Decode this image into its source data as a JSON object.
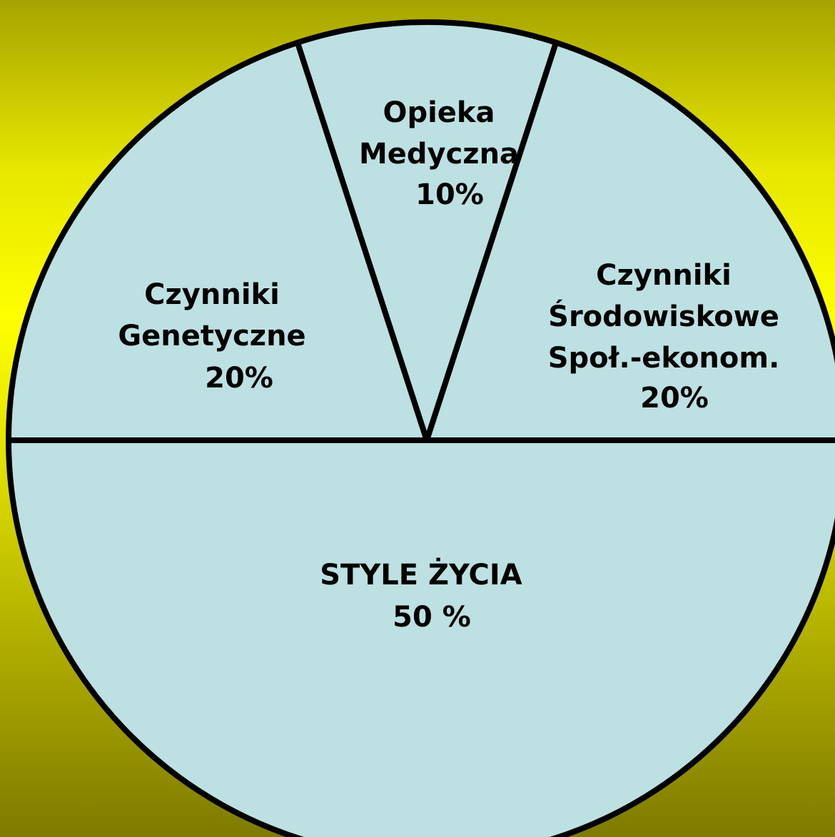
{
  "chart_data": {
    "type": "pie",
    "categories": [
      [
        "Czynniki",
        "Genetyczne"
      ],
      [
        "Opieka",
        "Medyczna"
      ],
      [
        "Czynniki",
        "Środowiskowe",
        "Społ.-ekonom."
      ],
      [
        "STYLE ŻYCIA"
      ]
    ],
    "values": [
      20,
      10,
      20,
      50
    ],
    "value_labels": [
      "20%",
      "10%",
      "20%",
      "50 %"
    ],
    "color": "#bde0e3"
  }
}
